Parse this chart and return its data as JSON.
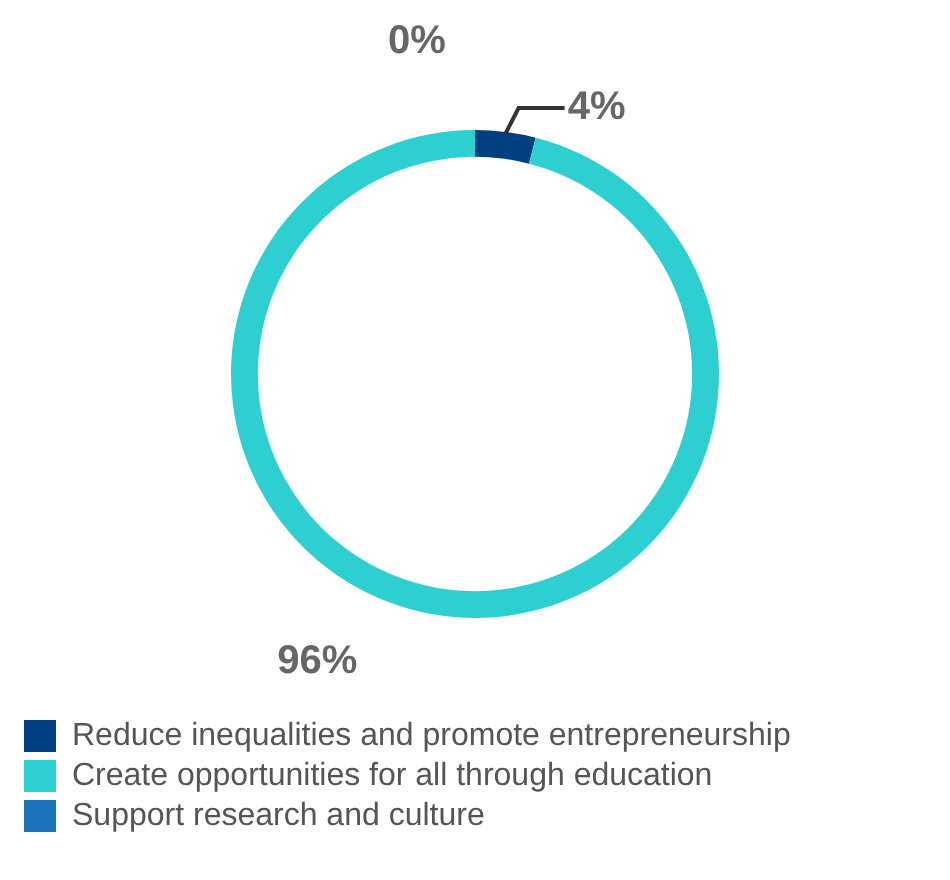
{
  "chart_data": {
    "type": "donut",
    "categories": [
      "Reduce inequalities and promote entrepreneurship",
      "Create opportunities for all through education",
      "Support research and culture"
    ],
    "values": [
      4,
      96,
      0
    ],
    "colors": [
      "#003f80",
      "#2ecfd0",
      "#1a73ba"
    ],
    "value_labels": [
      "4%",
      "96%",
      "0%"
    ],
    "legend": "bottom left"
  }
}
